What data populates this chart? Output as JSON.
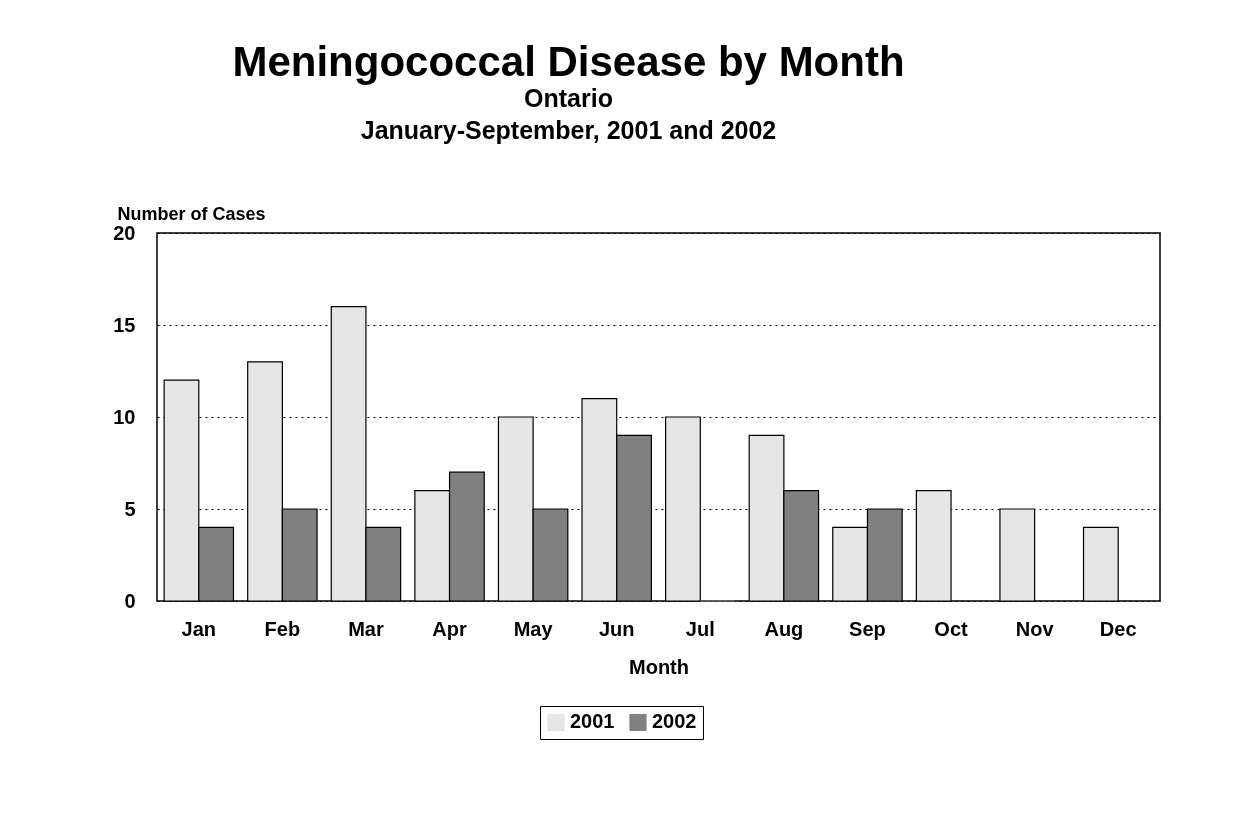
{
  "chart_data": {
    "type": "bar",
    "title": "Meningococcal Disease by Month",
    "subtitle": "Ontario\nJanuary-September, 2001 and 2002",
    "xlabel": "Month",
    "ylabel": "Number of Cases",
    "categories": [
      "Jan",
      "Feb",
      "Mar",
      "Apr",
      "May",
      "Jun",
      "Jul",
      "Aug",
      "Sep",
      "Oct",
      "Nov",
      "Dec"
    ],
    "series": [
      {
        "name": "2001",
        "color": "#e6e6e6",
        "values": [
          12,
          13,
          16,
          6,
          10,
          11,
          10,
          9,
          4,
          6,
          5,
          4
        ]
      },
      {
        "name": "2002",
        "color": "#808080",
        "values": [
          4,
          5,
          4,
          7,
          5,
          9,
          0,
          6,
          5,
          null,
          null,
          null
        ]
      }
    ],
    "ylim": [
      0,
      20
    ],
    "yticks": [
      0,
      5,
      10,
      15,
      20
    ],
    "grid": "y",
    "line_style": "dotted",
    "legend": "bottom"
  }
}
